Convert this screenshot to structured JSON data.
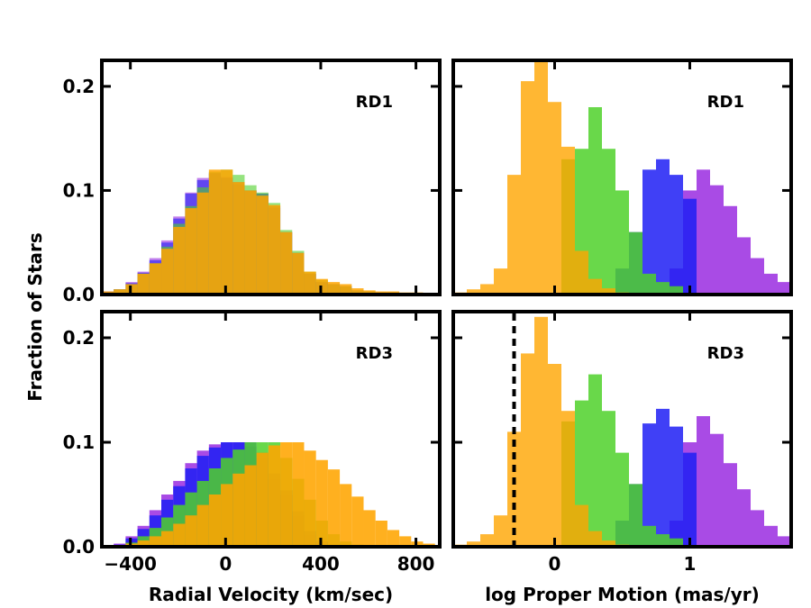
{
  "chart_data": {
    "type": "bar",
    "ylabel": "Fraction of Stars",
    "series_colors": {
      "purple": "#9A2BE0",
      "blue": "#1F1FF5",
      "green": "#4FD12A",
      "orange": "#FFA500"
    },
    "panels": [
      {
        "id": "rv-rd1",
        "label": "RD1",
        "xlabel": "",
        "xlim": [
          -520,
          900
        ],
        "ylim": [
          0,
          0.225
        ],
        "xticks": [],
        "yticks": [
          {
            "v": 0.0,
            "label": "0.0"
          },
          {
            "v": 0.1,
            "label": "0.1"
          },
          {
            "v": 0.2,
            "label": "0.2"
          }
        ],
        "bin_edges": [
          -520,
          -470,
          -420,
          -370,
          -320,
          -270,
          -220,
          -170,
          -120,
          -70,
          -20,
          30,
          80,
          130,
          180,
          230,
          280,
          330,
          380,
          430,
          480,
          530,
          580,
          630,
          680,
          730,
          780,
          830,
          880
        ],
        "series": [
          {
            "name": "purple",
            "opacity": 0.6,
            "values": [
              0.003,
              0.005,
              0.012,
              0.022,
              0.035,
              0.052,
              0.075,
              0.098,
              0.112,
              0.116,
              0.113,
              0.108,
              0.1,
              0.097,
              0.083,
              0.06,
              0.04,
              0.02,
              0.012,
              0.01,
              0.008,
              0.004,
              0.003,
              0.002,
              0.002,
              0.001,
              0.001,
              0.0
            ]
          },
          {
            "name": "blue",
            "opacity": 0.6,
            "values": [
              0.003,
              0.005,
              0.011,
              0.021,
              0.033,
              0.05,
              0.073,
              0.097,
              0.11,
              0.117,
              0.112,
              0.106,
              0.1,
              0.097,
              0.085,
              0.06,
              0.04,
              0.02,
              0.012,
              0.01,
              0.008,
              0.004,
              0.003,
              0.002,
              0.002,
              0.001,
              0.001,
              0.0
            ]
          },
          {
            "name": "green",
            "opacity": 0.6,
            "values": [
              0.002,
              0.005,
              0.01,
              0.02,
              0.03,
              0.046,
              0.068,
              0.085,
              0.103,
              0.118,
              0.12,
              0.115,
              0.105,
              0.098,
              0.088,
              0.062,
              0.042,
              0.022,
              0.014,
              0.01,
              0.008,
              0.004,
              0.003,
              0.002,
              0.002,
              0.001,
              0.001,
              0.0
            ]
          },
          {
            "name": "orange",
            "opacity": 0.85,
            "values": [
              0.003,
              0.005,
              0.01,
              0.02,
              0.03,
              0.044,
              0.065,
              0.083,
              0.098,
              0.12,
              0.12,
              0.108,
              0.1,
              0.095,
              0.086,
              0.06,
              0.04,
              0.022,
              0.015,
              0.012,
              0.01,
              0.006,
              0.004,
              0.003,
              0.003,
              0.002,
              0.002,
              0.001
            ]
          }
        ]
      },
      {
        "id": "pm-rd1",
        "label": "RD1",
        "xlabel": "",
        "xlim": [
          -0.75,
          1.75
        ],
        "ylim": [
          0,
          0.225
        ],
        "xticks": [],
        "yticks": [
          {
            "v": 0.0,
            "label": ""
          },
          {
            "v": 0.1,
            "label": ""
          },
          {
            "v": 0.2,
            "label": ""
          }
        ],
        "bin_edges": [
          -0.75,
          -0.65,
          -0.55,
          -0.45,
          -0.35,
          -0.25,
          -0.15,
          -0.05,
          0.05,
          0.15,
          0.25,
          0.35,
          0.45,
          0.55,
          0.65,
          0.75,
          0.85,
          0.95,
          1.05,
          1.15,
          1.25,
          1.35,
          1.45,
          1.55,
          1.65,
          1.75
        ],
        "series": [
          {
            "name": "purple",
            "opacity": 0.85,
            "values": [
              0,
              0,
              0,
              0,
              0,
              0,
              0,
              0,
              0,
              0,
              0,
              0,
              0,
              0,
              0,
              0,
              0.025,
              0.1,
              0.12,
              0.105,
              0.085,
              0.055,
              0.035,
              0.02,
              0.012
            ]
          },
          {
            "name": "blue",
            "opacity": 0.85,
            "values": [
              0,
              0,
              0,
              0,
              0,
              0,
              0,
              0,
              0,
              0,
              0,
              0,
              0.025,
              0.06,
              0.12,
              0.13,
              0.115,
              0.092,
              0,
              0,
              0,
              0,
              0,
              0,
              0
            ]
          },
          {
            "name": "green",
            "opacity": 0.85,
            "values": [
              0,
              0,
              0,
              0,
              0,
              0,
              0,
              0,
              0.13,
              0.14,
              0.18,
              0.14,
              0.1,
              0.06,
              0.02,
              0.012,
              0.008,
              0,
              0,
              0,
              0,
              0,
              0,
              0,
              0
            ]
          },
          {
            "name": "orange",
            "opacity": 0.8,
            "values": [
              0.002,
              0.005,
              0.01,
              0.025,
              0.115,
              0.205,
              0.227,
              0.185,
              0.142,
              0.042,
              0.015,
              0.006,
              0.002,
              0,
              0,
              0,
              0,
              0,
              0,
              0,
              0,
              0,
              0,
              0,
              0
            ]
          }
        ]
      },
      {
        "id": "rv-rd3",
        "label": "RD3",
        "xlabel": "Radial Velocity (km/sec)",
        "xlim": [
          -520,
          900
        ],
        "ylim": [
          0,
          0.225
        ],
        "xticks": [
          {
            "v": -400,
            "label": "−400"
          },
          {
            "v": 0,
            "label": "0"
          },
          {
            "v": 400,
            "label": "400"
          },
          {
            "v": 800,
            "label": "800"
          }
        ],
        "yticks": [
          {
            "v": 0.0,
            "label": "0.0"
          },
          {
            "v": 0.1,
            "label": "0.1"
          },
          {
            "v": 0.2,
            "label": "0.2"
          }
        ],
        "bin_edges": [
          -520,
          -470,
          -420,
          -370,
          -320,
          -270,
          -220,
          -170,
          -120,
          -70,
          -20,
          30,
          80,
          130,
          180,
          230,
          280,
          330,
          380,
          430,
          480,
          530,
          580,
          630,
          680,
          730,
          780,
          830,
          880
        ],
        "series": [
          {
            "name": "purple",
            "opacity": 0.85,
            "values": [
              0,
              0.003,
              0.01,
              0.02,
              0.035,
              0.05,
              0.063,
              0.08,
              0.092,
              0.098,
              0.1,
              0.1,
              0.096,
              0.085,
              0.065,
              0.05,
              0.03,
              0.012,
              0.004,
              0.002,
              0.001,
              0,
              0,
              0,
              0,
              0,
              0,
              0
            ]
          },
          {
            "name": "blue",
            "opacity": 0.85,
            "values": [
              0,
              0.002,
              0.008,
              0.017,
              0.03,
              0.045,
              0.058,
              0.075,
              0.087,
              0.095,
              0.1,
              0.1,
              0.1,
              0.09,
              0.07,
              0.054,
              0.034,
              0.015,
              0.005,
              0.002,
              0.001,
              0,
              0,
              0,
              0,
              0,
              0,
              0
            ]
          },
          {
            "name": "green",
            "opacity": 0.85,
            "values": [
              0,
              0.001,
              0.004,
              0.01,
              0.018,
              0.028,
              0.04,
              0.052,
              0.063,
              0.075,
              0.085,
              0.093,
              0.1,
              0.1,
              0.1,
              0.085,
              0.065,
              0.045,
              0.025,
              0.012,
              0.005,
              0.002,
              0,
              0,
              0,
              0,
              0,
              0
            ]
          },
          {
            "name": "orange",
            "opacity": 0.88,
            "values": [
              0,
              0.001,
              0.003,
              0.006,
              0.01,
              0.015,
              0.022,
              0.03,
              0.04,
              0.05,
              0.06,
              0.07,
              0.078,
              0.09,
              0.097,
              0.1,
              0.1,
              0.092,
              0.083,
              0.074,
              0.06,
              0.048,
              0.035,
              0.025,
              0.016,
              0.01,
              0.005,
              0.003
            ]
          }
        ]
      },
      {
        "id": "pm-rd3",
        "label": "RD3",
        "xlabel": "log Proper Motion (mas/yr)",
        "xlim": [
          -0.75,
          1.75
        ],
        "ylim": [
          0,
          0.225
        ],
        "xticks": [
          {
            "v": 0,
            "label": "0"
          },
          {
            "v": 1,
            "label": "1"
          }
        ],
        "yticks": [
          {
            "v": 0.0,
            "label": ""
          },
          {
            "v": 0.1,
            "label": ""
          },
          {
            "v": 0.2,
            "label": ""
          }
        ],
        "vline": -0.3,
        "bin_edges": [
          -0.75,
          -0.65,
          -0.55,
          -0.45,
          -0.35,
          -0.25,
          -0.15,
          -0.05,
          0.05,
          0.15,
          0.25,
          0.35,
          0.45,
          0.55,
          0.65,
          0.75,
          0.85,
          0.95,
          1.05,
          1.15,
          1.25,
          1.35,
          1.45,
          1.55,
          1.65,
          1.75
        ],
        "series": [
          {
            "name": "purple",
            "opacity": 0.85,
            "values": [
              0,
              0,
              0,
              0,
              0,
              0,
              0,
              0,
              0,
              0,
              0,
              0,
              0,
              0,
              0,
              0,
              0.025,
              0.1,
              0.125,
              0.108,
              0.08,
              0.055,
              0.035,
              0.02,
              0.01
            ]
          },
          {
            "name": "blue",
            "opacity": 0.85,
            "values": [
              0,
              0,
              0,
              0,
              0,
              0,
              0,
              0,
              0,
              0,
              0,
              0,
              0.025,
              0.06,
              0.118,
              0.132,
              0.115,
              0.09,
              0,
              0,
              0,
              0,
              0,
              0,
              0
            ]
          },
          {
            "name": "green",
            "opacity": 0.85,
            "values": [
              0,
              0,
              0,
              0,
              0,
              0,
              0,
              0,
              0.12,
              0.14,
              0.165,
              0.13,
              0.09,
              0.06,
              0.02,
              0.012,
              0.008,
              0,
              0,
              0,
              0,
              0,
              0,
              0,
              0
            ]
          },
          {
            "name": "orange",
            "opacity": 0.8,
            "values": [
              0.002,
              0.005,
              0.012,
              0.03,
              0.11,
              0.185,
              0.22,
              0.175,
              0.13,
              0.04,
              0.015,
              0.006,
              0.002,
              0,
              0,
              0,
              0,
              0,
              0,
              0,
              0,
              0,
              0,
              0,
              0
            ]
          }
        ]
      }
    ]
  }
}
